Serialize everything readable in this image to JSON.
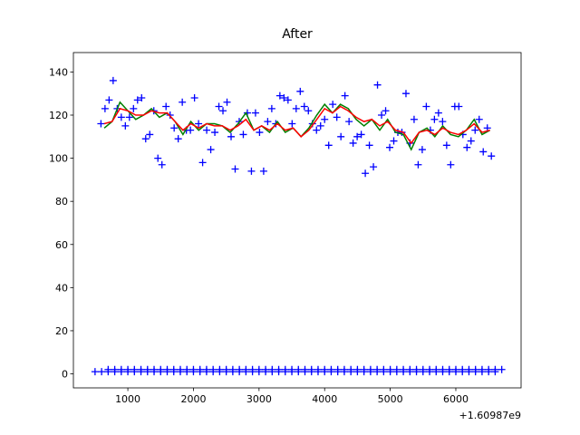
{
  "chart_data": {
    "type": "scatter",
    "title": "After",
    "x_offset": "+1.60987e9",
    "xlim": [
      170,
      6995
    ],
    "ylim": [
      -6.5,
      149
    ],
    "xticks": [
      1000,
      2000,
      3000,
      4000,
      5000,
      6000
    ],
    "yticks": [
      0,
      20,
      40,
      60,
      80,
      100,
      120,
      140
    ],
    "series": [
      {
        "type": "scatter",
        "color": "#0000ff",
        "x": [
          590,
          652,
          714,
          776,
          838,
          900,
          962,
          1024,
          1086,
          1148,
          1210,
          1272,
          1334,
          1396,
          1458,
          1520,
          1582,
          1644,
          1706,
          1768,
          1830,
          1892,
          1954,
          2016,
          2078,
          2140,
          2202,
          2264,
          2326,
          2388,
          2450,
          2512,
          2574,
          2636,
          2698,
          2760,
          2822,
          2884,
          2946,
          3008,
          3070,
          3132,
          3194,
          3256,
          3318,
          3380,
          3442,
          3504,
          3566,
          3628,
          3690,
          3752,
          3814,
          3876,
          3938,
          4000,
          4062,
          4124,
          4186,
          4248,
          4310,
          4372,
          4434,
          4496,
          4558,
          4620,
          4682,
          4744,
          4806,
          4868,
          4930,
          4992,
          5054,
          5116,
          5178,
          5240,
          5302,
          5364,
          5426,
          5488,
          5550,
          5612,
          5674,
          5736,
          5798,
          5860,
          5922,
          5984,
          6046,
          6108,
          6170,
          6232,
          6294,
          6356,
          6418,
          6480,
          6542
        ],
        "values": [
          116,
          123,
          127,
          136,
          123,
          119,
          115,
          119,
          123,
          127,
          128,
          109,
          111,
          122,
          100,
          97,
          124,
          120,
          114,
          109,
          126,
          113,
          113,
          128,
          116,
          98,
          113,
          104,
          112,
          124,
          122,
          126,
          110,
          95,
          117,
          111,
          121,
          94,
          121,
          112,
          94,
          117,
          123,
          116,
          129,
          128,
          127,
          116,
          123,
          131,
          124,
          122,
          116,
          113,
          115,
          118,
          106,
          125,
          119,
          110,
          129,
          117,
          107,
          110,
          111,
          93,
          106,
          96,
          134,
          120,
          122,
          105,
          108,
          112,
          112,
          130,
          107,
          118,
          97,
          104,
          124,
          113,
          118,
          121,
          117,
          106,
          97,
          124,
          124,
          111,
          105,
          108,
          113,
          118,
          103,
          114,
          101
        ]
      },
      {
        "type": "scatter",
        "color": "#0000ff",
        "x": [
          500,
          600,
          700,
          800,
          900,
          1000,
          1100,
          1200,
          1300,
          1400,
          1500,
          1600,
          1700,
          1800,
          1900,
          2000,
          2100,
          2200,
          2300,
          2400,
          2500,
          2600,
          2700,
          2800,
          2900,
          3000,
          3100,
          3200,
          3300,
          3400,
          3500,
          3600,
          3700,
          3800,
          3900,
          4000,
          4100,
          4200,
          4300,
          4400,
          4500,
          4600,
          4700,
          4800,
          4900,
          5000,
          5100,
          5200,
          5300,
          5400,
          5500,
          5600,
          5700,
          5800,
          5900,
          6000,
          6100,
          6200,
          6300,
          6400,
          6500,
          6600
        ],
        "values": [
          1,
          1,
          1,
          1,
          1,
          1,
          1,
          1,
          1,
          1,
          1,
          1,
          1,
          1,
          1,
          1,
          1,
          1,
          1,
          1,
          1,
          1,
          1,
          1,
          1,
          1,
          1,
          1,
          1,
          1,
          1,
          1,
          1,
          1,
          1,
          1,
          1,
          1,
          1,
          1,
          1,
          1,
          1,
          1,
          1,
          1,
          1,
          1,
          1,
          1,
          1,
          1,
          1,
          1,
          1,
          1,
          1,
          1,
          1,
          1,
          1,
          1
        ]
      },
      {
        "type": "scatter",
        "color": "#0000ff",
        "x": [
          700,
          800,
          900,
          1000,
          1100,
          1200,
          1300,
          1400,
          1500,
          1600,
          1700,
          1800,
          1900,
          2000,
          2100,
          2200,
          2300,
          2400,
          2500,
          2600,
          2700,
          2800,
          2900,
          3000,
          3100,
          3200,
          3300,
          3400,
          3500,
          3600,
          3700,
          3800,
          3900,
          4000,
          4100,
          4200,
          4300,
          4400,
          4500,
          4600,
          4700,
          4800,
          4900,
          5000,
          5100,
          5200,
          5300,
          5400,
          5500,
          5600,
          5700,
          5800,
          5900,
          6000,
          6100,
          6200,
          6300,
          6400,
          6500,
          6600,
          6700
        ],
        "values": [
          2,
          2,
          2,
          2,
          2,
          2,
          2,
          2,
          2,
          2,
          2,
          2,
          2,
          2,
          2,
          2,
          2,
          2,
          2,
          2,
          2,
          2,
          2,
          2,
          2,
          2,
          2,
          2,
          2,
          2,
          2,
          2,
          2,
          2,
          2,
          2,
          2,
          2,
          2,
          2,
          2,
          2,
          2,
          2,
          2,
          2,
          2,
          2,
          2,
          2,
          2,
          2,
          2,
          2,
          2,
          2,
          2,
          2,
          2,
          2,
          2
        ]
      },
      {
        "type": "line",
        "color": "#008000",
        "x": [
          640,
          760,
          880,
          1000,
          1120,
          1240,
          1360,
          1480,
          1600,
          1720,
          1840,
          1960,
          2080,
          2200,
          2320,
          2440,
          2560,
          2680,
          2800,
          2920,
          3040,
          3160,
          3280,
          3400,
          3520,
          3640,
          3760,
          3880,
          4000,
          4120,
          4240,
          4360,
          4480,
          4600,
          4720,
          4840,
          4960,
          5080,
          5200,
          5320,
          5440,
          5560,
          5680,
          5800,
          5920,
          6040,
          6160,
          6280,
          6400,
          6520
        ],
        "values": [
          114,
          117,
          126,
          122,
          118,
          120,
          123,
          119,
          121,
          117,
          111,
          117,
          113,
          116,
          116,
          115,
          112,
          116,
          121,
          113,
          115,
          112,
          117,
          112,
          114,
          110,
          114,
          120,
          125,
          121,
          125,
          123,
          118,
          115,
          118,
          113,
          118,
          112,
          111,
          104,
          112,
          114,
          110,
          115,
          111,
          110,
          113,
          118,
          111,
          113
        ]
      },
      {
        "type": "line",
        "color": "#ff0000",
        "x": [
          640,
          760,
          880,
          1000,
          1120,
          1240,
          1360,
          1480,
          1600,
          1720,
          1840,
          1960,
          2080,
          2200,
          2320,
          2440,
          2560,
          2680,
          2800,
          2920,
          3040,
          3160,
          3280,
          3400,
          3520,
          3640,
          3760,
          3880,
          4000,
          4120,
          4240,
          4360,
          4480,
          4600,
          4720,
          4840,
          4960,
          5080,
          5200,
          5320,
          5440,
          5560,
          5680,
          5800,
          5920,
          6040,
          6160,
          6280,
          6400,
          6520
        ],
        "values": [
          116,
          117,
          123,
          122,
          120,
          120,
          122,
          121,
          121,
          117,
          113,
          116,
          114,
          116,
          115,
          115,
          113,
          115,
          118,
          113,
          115,
          113,
          116,
          113,
          114,
          110,
          113,
          118,
          123,
          121,
          124,
          122,
          119,
          117,
          118,
          115,
          117,
          113,
          112,
          107,
          112,
          113,
          111,
          114,
          112,
          111,
          113,
          116,
          112,
          113
        ]
      }
    ]
  }
}
